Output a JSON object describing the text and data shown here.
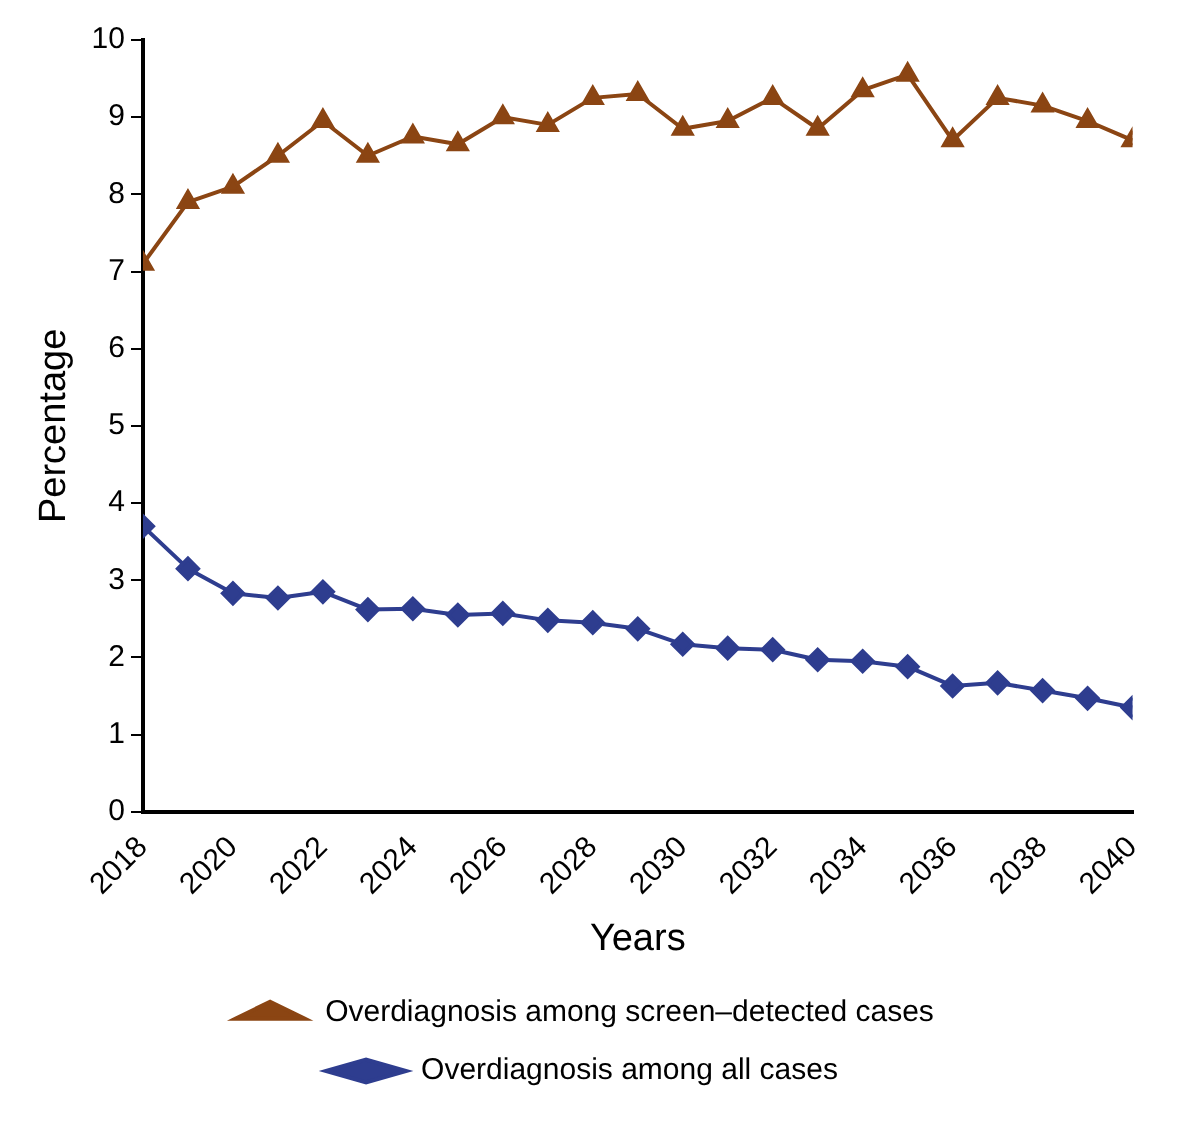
{
  "chart_data": {
    "type": "line",
    "xlabel": "Years",
    "ylabel": "Percentage",
    "x": [
      2018,
      2019,
      2020,
      2021,
      2022,
      2023,
      2024,
      2025,
      2026,
      2027,
      2028,
      2029,
      2030,
      2031,
      2032,
      2033,
      2034,
      2035,
      2036,
      2037,
      2038,
      2039,
      2040
    ],
    "series": [
      {
        "name": "Overdiagnosis among screen–detected cases",
        "color": "#8b4513",
        "marker": "triangle",
        "values": [
          7.1,
          7.9,
          8.1,
          8.5,
          8.95,
          8.5,
          8.75,
          8.65,
          9.0,
          8.9,
          9.25,
          9.3,
          8.85,
          8.95,
          9.25,
          8.85,
          9.35,
          9.55,
          8.7,
          9.25,
          9.15,
          8.95,
          8.7
        ]
      },
      {
        "name": "Overdiagnosis among all cases",
        "color": "#2e3d8f",
        "marker": "diamond",
        "values": [
          3.7,
          3.15,
          2.83,
          2.77,
          2.85,
          2.62,
          2.63,
          2.55,
          2.57,
          2.48,
          2.45,
          2.37,
          2.17,
          2.12,
          2.1,
          1.97,
          1.95,
          1.88,
          1.63,
          1.67,
          1.57,
          1.47,
          1.35
        ]
      }
    ],
    "xlim": [
      2018,
      2040
    ],
    "xticks": [
      2018,
      2020,
      2022,
      2024,
      2026,
      2028,
      2030,
      2032,
      2034,
      2036,
      2038,
      2040
    ],
    "ylim": [
      0,
      10
    ],
    "yticks": [
      0,
      1,
      2,
      3,
      4,
      5,
      6,
      7,
      8,
      9,
      10
    ],
    "grid": false,
    "legend": "bottom",
    "line_style": "solid"
  }
}
